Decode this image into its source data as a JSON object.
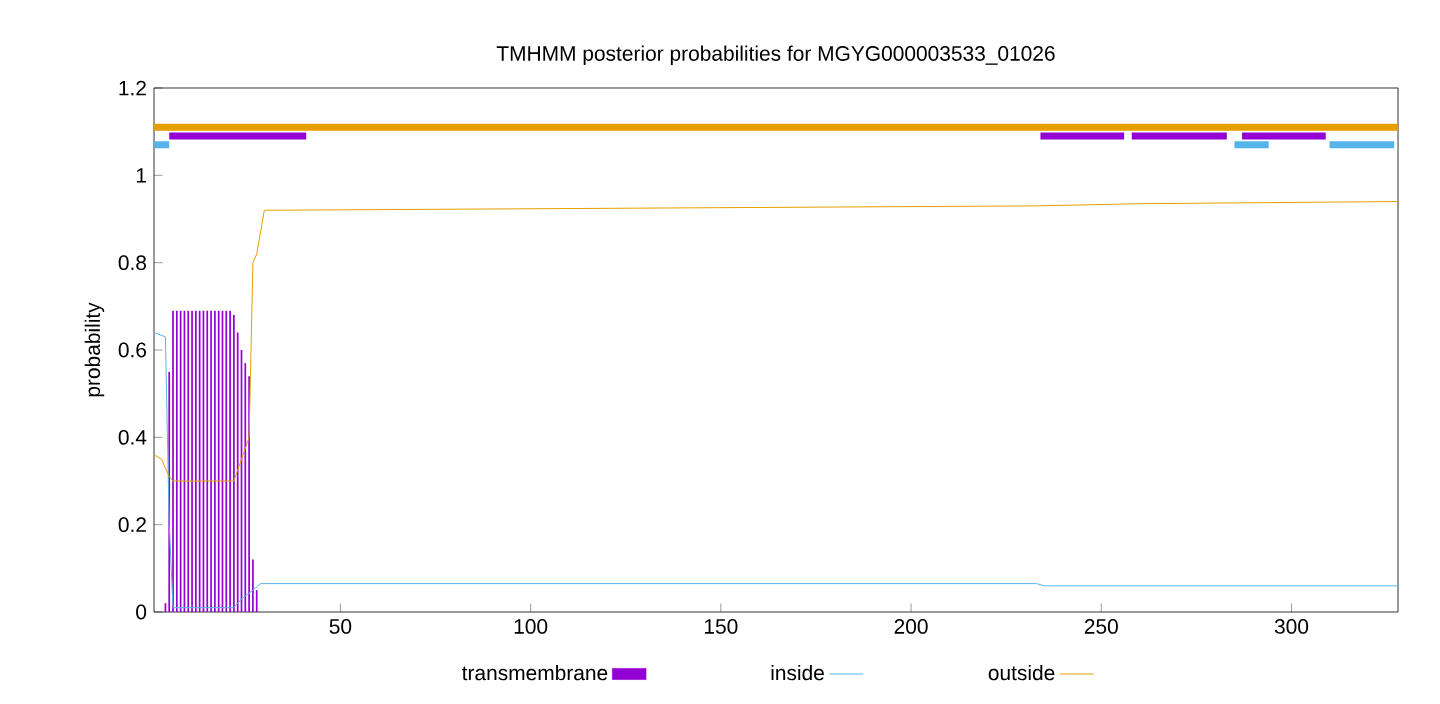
{
  "chart_data": {
    "type": "line",
    "title": "TMHMM posterior probabilities for MGYG000003533_01026",
    "ylabel": "probability",
    "xlim": [
      1,
      328
    ],
    "ylim": [
      0,
      1.2
    ],
    "xticks": [
      50,
      100,
      150,
      200,
      250,
      300
    ],
    "yticks": [
      0,
      0.2,
      0.4,
      0.6,
      0.8,
      1,
      1.2
    ],
    "legend": "bottom",
    "grid": false,
    "series": [
      {
        "name": "transmembrane",
        "type": "bar",
        "color": "#9400d3",
        "x": [
          1,
          2,
          3,
          4,
          5,
          6,
          7,
          8,
          9,
          10,
          11,
          12,
          13,
          14,
          15,
          16,
          17,
          18,
          19,
          20,
          21,
          22,
          23,
          24,
          25,
          26,
          27,
          28,
          29
        ],
        "values": [
          0,
          0,
          0,
          0.02,
          0.55,
          0.69,
          0.69,
          0.69,
          0.69,
          0.69,
          0.69,
          0.69,
          0.69,
          0.69,
          0.69,
          0.69,
          0.69,
          0.69,
          0.69,
          0.69,
          0.69,
          0.68,
          0.64,
          0.6,
          0.57,
          0.54,
          0.12,
          0.05,
          0
        ]
      },
      {
        "name": "inside",
        "color": "#56b4e9",
        "x": [
          1,
          4,
          5,
          6,
          22,
          24,
          27,
          29,
          233,
          235,
          328
        ],
        "values": [
          0.64,
          0.63,
          0.2,
          0.01,
          0.01,
          0.03,
          0.05,
          0.065,
          0.065,
          0.06,
          0.06
        ]
      },
      {
        "name": "outside",
        "color": "#e69f00",
        "x": [
          1,
          3,
          5,
          6,
          22,
          24,
          26,
          27,
          28,
          30,
          233,
          260,
          328
        ],
        "values": [
          0.36,
          0.35,
          0.31,
          0.3,
          0.3,
          0.35,
          0.4,
          0.8,
          0.82,
          0.92,
          0.93,
          0.935,
          0.94
        ]
      },
      {
        "color": "#e69f00",
        "x": [
          1,
          328
        ],
        "values": [
          1.11,
          1.11
        ]
      },
      {
        "color": "#9400d3",
        "x": [
          5,
          41
        ],
        "values": [
          1.09,
          1.09
        ]
      },
      {
        "color": "#9400d3",
        "x": [
          234,
          256
        ],
        "values": [
          1.09,
          1.09
        ]
      },
      {
        "color": "#9400d3",
        "x": [
          258,
          283
        ],
        "values": [
          1.09,
          1.09
        ]
      },
      {
        "color": "#9400d3",
        "x": [
          287,
          309
        ],
        "values": [
          1.09,
          1.09
        ]
      },
      {
        "color": "#56b4e9",
        "x": [
          1,
          5
        ],
        "values": [
          1.07,
          1.07
        ]
      },
      {
        "color": "#56b4e9",
        "x": [
          285,
          294
        ],
        "values": [
          1.07,
          1.07
        ]
      },
      {
        "color": "#56b4e9",
        "x": [
          310,
          327
        ],
        "values": [
          1.07,
          1.07
        ]
      }
    ]
  }
}
